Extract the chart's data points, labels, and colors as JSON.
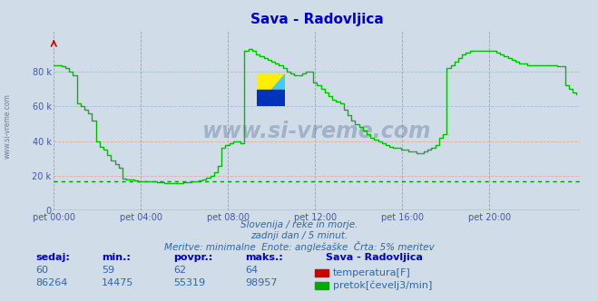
{
  "title": "Sava - Radovljica",
  "title_color": "#0000cc",
  "bg_color": "#d0dce8",
  "plot_bg_color": "#d0dce8",
  "ylabel_color": "#4455aa",
  "xlabel_color": "#4455aa",
  "line_color": "#00bb00",
  "hline_color": "#009900",
  "hline_value": 16800,
  "vgrid_color": "#dd8888",
  "hgrid_color": "#ddaaaa",
  "zero_line_color": "#dd0000",
  "ytick_labels": [
    "0",
    "20 k",
    "40 k",
    "60 k",
    "80 k"
  ],
  "ytick_values": [
    0,
    20000,
    40000,
    60000,
    80000
  ],
  "ylim": [
    0,
    104000
  ],
  "xtick_labels": [
    "pet 00:00",
    "pet 04:00",
    "pet 08:00",
    "pet 12:00",
    "pet 16:00",
    "pet 20:00"
  ],
  "xtick_values": [
    0,
    48,
    96,
    144,
    192,
    240
  ],
  "xlim": [
    0,
    290
  ],
  "subtitle1": "Slovenija / reke in morje.",
  "subtitle2": "zadnji dan / 5 minut.",
  "subtitle3": "Meritve: minimalne  Enote: anglešaške  Črta: 5% meritev",
  "subtitle_color": "#336699",
  "watermark": "www.si-vreme.com",
  "watermark_color": "#1a3a6a",
  "watermark_alpha": 0.25,
  "legend_title": "Sava - Radovljica",
  "legend_items": [
    {
      "label": "temperatura[F]",
      "color": "#cc0000"
    },
    {
      "label": "pretok[čevelj3/min]",
      "color": "#00aa00"
    }
  ],
  "stats_headers": [
    "sedaj:",
    "min.:",
    "povpr.:",
    "maks.:"
  ],
  "stats_temp": [
    60,
    59,
    62,
    64
  ],
  "stats_flow": [
    86264,
    14475,
    55319,
    98957
  ],
  "flow_data": [
    84000,
    84000,
    83000,
    82000,
    80000,
    78000,
    62000,
    60000,
    58000,
    56000,
    52000,
    40000,
    37000,
    35000,
    32000,
    29000,
    27000,
    25000,
    18500,
    18000,
    18000,
    17500,
    17000,
    17000,
    17000,
    17000,
    16800,
    16500,
    16200,
    16000,
    16000,
    16000,
    16000,
    16000,
    16200,
    16500,
    17000,
    17000,
    17500,
    18000,
    19000,
    20000,
    22000,
    26000,
    36000,
    38000,
    39000,
    40000,
    40000,
    39000,
    92000,
    93000,
    92000,
    90000,
    89000,
    88000,
    87000,
    86000,
    85000,
    84000,
    82000,
    80000,
    79000,
    78000,
    78000,
    79000,
    80000,
    80000,
    74000,
    72000,
    70000,
    68000,
    66000,
    64000,
    63000,
    62000,
    58000,
    55000,
    52000,
    50000,
    48000,
    46000,
    44000,
    42000,
    41000,
    40000,
    39000,
    38000,
    37000,
    36000,
    36000,
    35000,
    35000,
    34000,
    34000,
    33000,
    33000,
    34000,
    35000,
    36000,
    38000,
    42000,
    44000,
    82000,
    84000,
    86000,
    88000,
    90000,
    91000,
    92000,
    92000,
    92000,
    92000,
    92000,
    92000,
    92000,
    91000,
    90000,
    89000,
    88000,
    87000,
    86000,
    85000,
    85000,
    84000,
    84000,
    84000,
    84000,
    84000,
    84000,
    84000,
    84000,
    83000,
    83000,
    72000,
    70000,
    68000,
    67000
  ]
}
